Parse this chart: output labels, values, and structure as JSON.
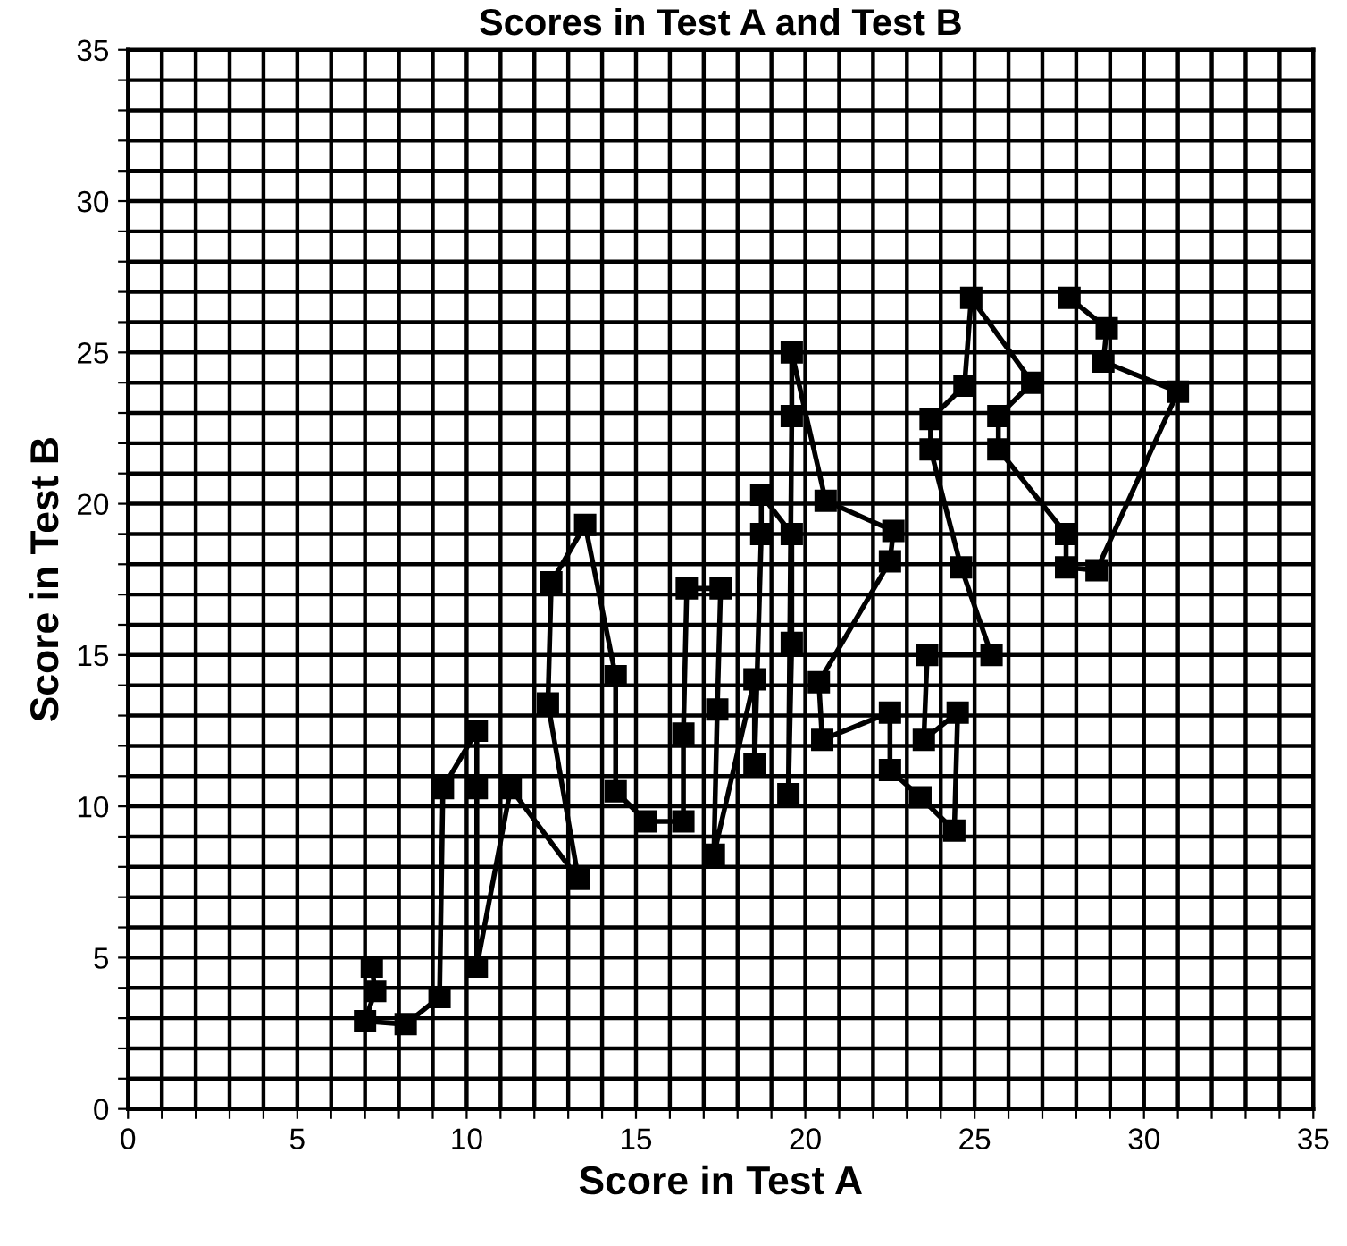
{
  "chart_data": {
    "type": "line",
    "title": "Scores in Test A and Test B",
    "xlabel": "Score in Test A",
    "ylabel": "Score in Test B",
    "x": [
      7.2,
      7.3,
      7.0,
      8.2,
      9.2,
      9.3,
      10.3,
      10.3,
      10.3,
      11.3,
      13.3,
      12.4,
      12.5,
      13.5,
      14.4,
      14.4,
      15.3,
      16.4,
      16.4,
      16.5,
      17.5,
      17.4,
      17.3,
      18.5,
      18.5,
      18.7,
      18.7,
      19.6,
      19.6,
      19.5,
      19.6,
      19.6,
      20.6,
      22.6,
      22.5,
      20.4,
      20.5,
      22.5,
      22.5,
      23.4,
      24.4,
      24.5,
      23.5,
      23.6,
      25.5,
      24.6,
      23.7,
      23.7,
      24.7,
      24.9,
      26.7,
      25.7,
      25.7,
      27.7,
      27.7,
      28.6,
      31.0,
      28.8,
      28.9,
      27.8
    ],
    "series": [
      {
        "color": "#000000",
        "values": [
          4.7,
          3.9,
          2.9,
          2.8,
          3.7,
          10.6,
          12.5,
          10.6,
          4.7,
          10.6,
          7.6,
          13.4,
          17.4,
          19.3,
          14.3,
          10.5,
          9.5,
          9.5,
          12.4,
          17.2,
          17.2,
          13.2,
          8.4,
          14.2,
          11.4,
          19.0,
          20.3,
          19.0,
          15.4,
          10.4,
          22.9,
          25.0,
          20.1,
          19.1,
          18.1,
          14.1,
          12.2,
          13.1,
          11.2,
          10.3,
          9.2,
          13.1,
          12.2,
          15.0,
          15.0,
          17.9,
          21.8,
          22.8,
          23.9,
          26.8,
          24.0,
          22.9,
          21.8,
          19.0,
          17.9,
          17.8,
          23.7,
          24.7,
          25.8,
          26.8
        ]
      }
    ],
    "marker": "square",
    "line_style": "solid",
    "grid": true,
    "xlim": [
      0,
      35
    ],
    "ylim": [
      0,
      35
    ],
    "xticks": [
      0,
      {
        "value": 1,
        "label": null
      },
      {
        "value": 2,
        "label": null
      },
      {
        "value": 3,
        "label": null
      },
      {
        "value": 4,
        "label": null
      },
      5,
      {
        "value": 6,
        "label": null
      },
      {
        "value": 7,
        "label": null
      },
      {
        "value": 8,
        "label": null
      },
      {
        "value": 9,
        "label": null
      },
      10,
      {
        "value": 11,
        "label": null
      },
      {
        "value": 12,
        "label": null
      },
      {
        "value": 13,
        "label": null
      },
      {
        "value": 14,
        "label": null
      },
      15,
      {
        "value": 16,
        "label": null
      },
      {
        "value": 17,
        "label": null
      },
      {
        "value": 18,
        "label": null
      },
      {
        "value": 19,
        "label": null
      },
      20,
      {
        "value": 21,
        "label": null
      },
      {
        "value": 22,
        "label": null
      },
      {
        "value": 23,
        "label": null
      },
      {
        "value": 24,
        "label": null
      },
      25,
      {
        "value": 26,
        "label": null
      },
      {
        "value": 27,
        "label": null
      },
      {
        "value": 28,
        "label": null
      },
      {
        "value": 29,
        "label": null
      },
      30,
      {
        "value": 31,
        "label": null
      },
      {
        "value": 32,
        "label": null
      },
      {
        "value": 33,
        "label": null
      },
      {
        "value": 34,
        "label": null
      },
      35
    ],
    "yticks": [
      0,
      {
        "value": 1,
        "label": null
      },
      {
        "value": 2,
        "label": null
      },
      {
        "value": 3,
        "label": null
      },
      {
        "value": 4,
        "label": null
      },
      5,
      {
        "value": 6,
        "label": null
      },
      {
        "value": 7,
        "label": null
      },
      {
        "value": 8,
        "label": null
      },
      {
        "value": 9,
        "label": null
      },
      10,
      {
        "value": 11,
        "label": null
      },
      {
        "value": 12,
        "label": null
      },
      {
        "value": 13,
        "label": null
      },
      {
        "value": 14,
        "label": null
      },
      15,
      {
        "value": 16,
        "label": null
      },
      {
        "value": 17,
        "label": null
      },
      {
        "value": 18,
        "label": null
      },
      {
        "value": 19,
        "label": null
      },
      20,
      {
        "value": 21,
        "label": null
      },
      {
        "value": 22,
        "label": null
      },
      {
        "value": 23,
        "label": null
      },
      {
        "value": 24,
        "label": null
      },
      25,
      {
        "value": 26,
        "label": null
      },
      {
        "value": 27,
        "label": null
      },
      {
        "value": 28,
        "label": null
      },
      {
        "value": 29,
        "label": null
      },
      30,
      {
        "value": 31,
        "label": null
      },
      {
        "value": 32,
        "label": null
      },
      {
        "value": 33,
        "label": null
      },
      {
        "value": 34,
        "label": null
      },
      35
    ]
  }
}
